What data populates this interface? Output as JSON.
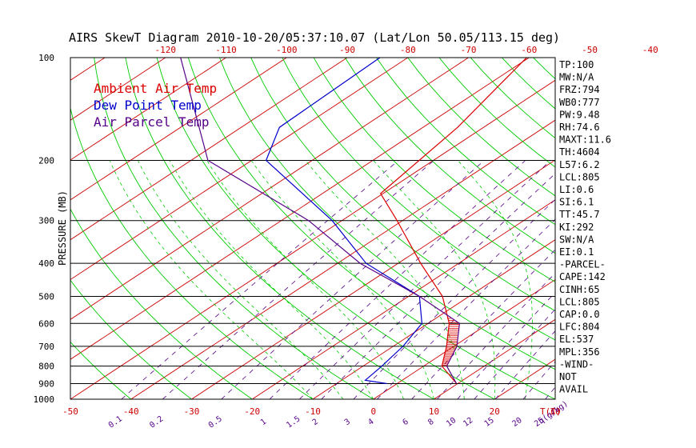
{
  "chart_data": {
    "type": "line",
    "title": "AIRS SkewT Diagram 2010-10-20/05:37:10.07 (Lat/Lon 50.05/113.15 deg)",
    "ylabel": "PRESSURE (MB)",
    "pressure_ticks": [
      "100",
      "200",
      "300",
      "400",
      "500",
      "600",
      "700",
      "800",
      "900",
      "1000"
    ],
    "top_temp_ticks": [
      "-120",
      "-110",
      "-100",
      "-90",
      "-80",
      "-70",
      "-60",
      "-50",
      "-40"
    ],
    "bottom_temp_ticks": [
      "-50",
      "-40",
      "-30",
      "-20",
      "-10",
      "0",
      "10",
      "20",
      "30"
    ],
    "bottom_temp_unit": "T(C)",
    "mixing_ratio_ticks": [
      "0.1",
      "0.2",
      "0.5",
      "1",
      "1.5",
      "2",
      "3",
      "4",
      "6",
      "8",
      "10",
      "12",
      "15",
      "20",
      "25",
      "30",
      "40"
    ],
    "mixing_ratio_unit": "q(g/kg)",
    "legend": [
      {
        "label": "Ambient Air Temp",
        "color": "#dd0000"
      },
      {
        "label": "Dew Point Temp",
        "color": "#0000cc"
      },
      {
        "label": "Air Parcel Temp",
        "color": "#550088"
      }
    ],
    "series": [
      {
        "name": "Ambient Air Temp",
        "color": "#dd0000",
        "points": [
          [
            100,
            -60.4
          ],
          [
            160,
            -54.3
          ],
          [
            250,
            -50.4
          ],
          [
            300,
            -40.9
          ],
          [
            400,
            -26.3
          ],
          [
            500,
            -14.4
          ],
          [
            600,
            -6.5
          ],
          [
            700,
            -1.2
          ],
          [
            800,
            3.0
          ],
          [
            900,
            9.8
          ]
        ]
      },
      {
        "name": "Dew Point Temp",
        "color": "#0000cc",
        "points": [
          [
            100,
            -84.6
          ],
          [
            160,
            -83.7
          ],
          [
            200,
            -77.6
          ],
          [
            300,
            -51.6
          ],
          [
            400,
            -35.3
          ],
          [
            500,
            -18.2
          ],
          [
            600,
            -11.0
          ],
          [
            700,
            -8.4
          ],
          [
            800,
            -6.9
          ],
          [
            880,
            -6.1
          ],
          [
            900,
            -1.7
          ]
        ]
      },
      {
        "name": "Air Parcel Temp",
        "color": "#550088",
        "points": [
          [
            100,
            -117.5
          ],
          [
            200,
            -87.2
          ],
          [
            300,
            -55.5
          ],
          [
            400,
            -36.3
          ],
          [
            500,
            -18.2
          ],
          [
            600,
            -4.8
          ],
          [
            700,
            0.5
          ],
          [
            800,
            3.8
          ],
          [
            900,
            9.8
          ]
        ]
      }
    ],
    "indices": [
      "TP:100",
      "MW:N/A",
      "FRZ:794",
      "WB0:777",
      "PW:9.48",
      "RH:74.6",
      "MAXT:11.6",
      "TH:4604",
      "L57:6.2",
      "LCL:805",
      "LI:0.6",
      "SI:6.1",
      "TT:45.7",
      "KI:292",
      "SW:N/A",
      "EI:0.1",
      "-PARCEL-",
      "CAPE:142",
      "CINH:65",
      "LCL:805",
      "CAP:0.0",
      "LFC:804",
      "EL:537",
      "MPL:356",
      "-WIND-",
      "NOT",
      "AVAIL"
    ]
  },
  "colors": {
    "isotherm": "#cc0000",
    "dry_adiabat": "#00cc00",
    "mixing_ratio": "#550088",
    "isobar": "#000000"
  }
}
